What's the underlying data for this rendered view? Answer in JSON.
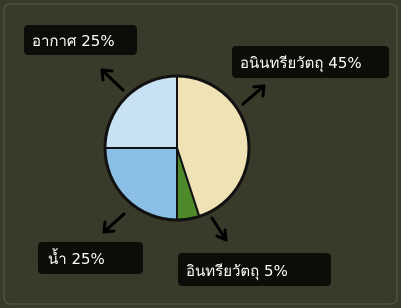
{
  "chart_data": {
    "type": "pie",
    "categories": [
      "อนินทรียวัตถุ",
      "อินทรียวัตถุ",
      "น้ำ",
      "อากาศ"
    ],
    "values": [
      45,
      5,
      25,
      25
    ],
    "value_labels": [
      "45%",
      "5%",
      "25%",
      "25%"
    ],
    "colors": [
      "#efe2b4",
      "#4e8a2a",
      "#8cbfe6",
      "#c9e2f3"
    ]
  }
}
